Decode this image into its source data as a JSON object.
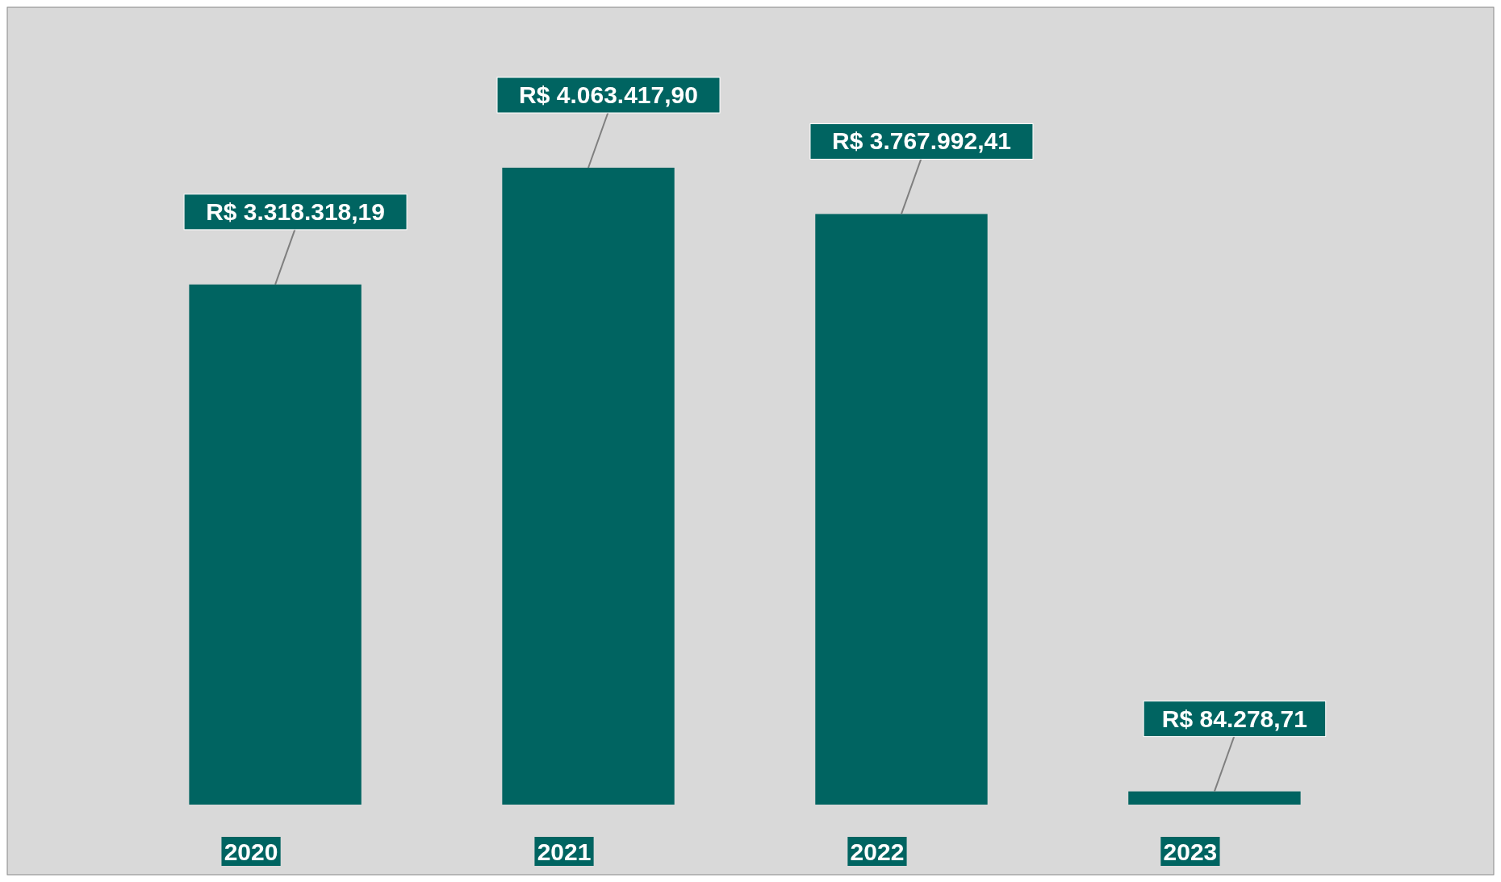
{
  "chart_data": {
    "type": "bar",
    "categories": [
      "2020",
      "2021",
      "2022",
      "2023"
    ],
    "values": [
      3318318.19,
      4063417.9,
      3767992.41,
      84278.71
    ],
    "color": "#006461",
    "value_labels": [
      "R$ 3.318.318,19",
      "R$ 4.063.417,90",
      "R$ 3.767.992,41",
      "R$ 84.278,71"
    ]
  }
}
